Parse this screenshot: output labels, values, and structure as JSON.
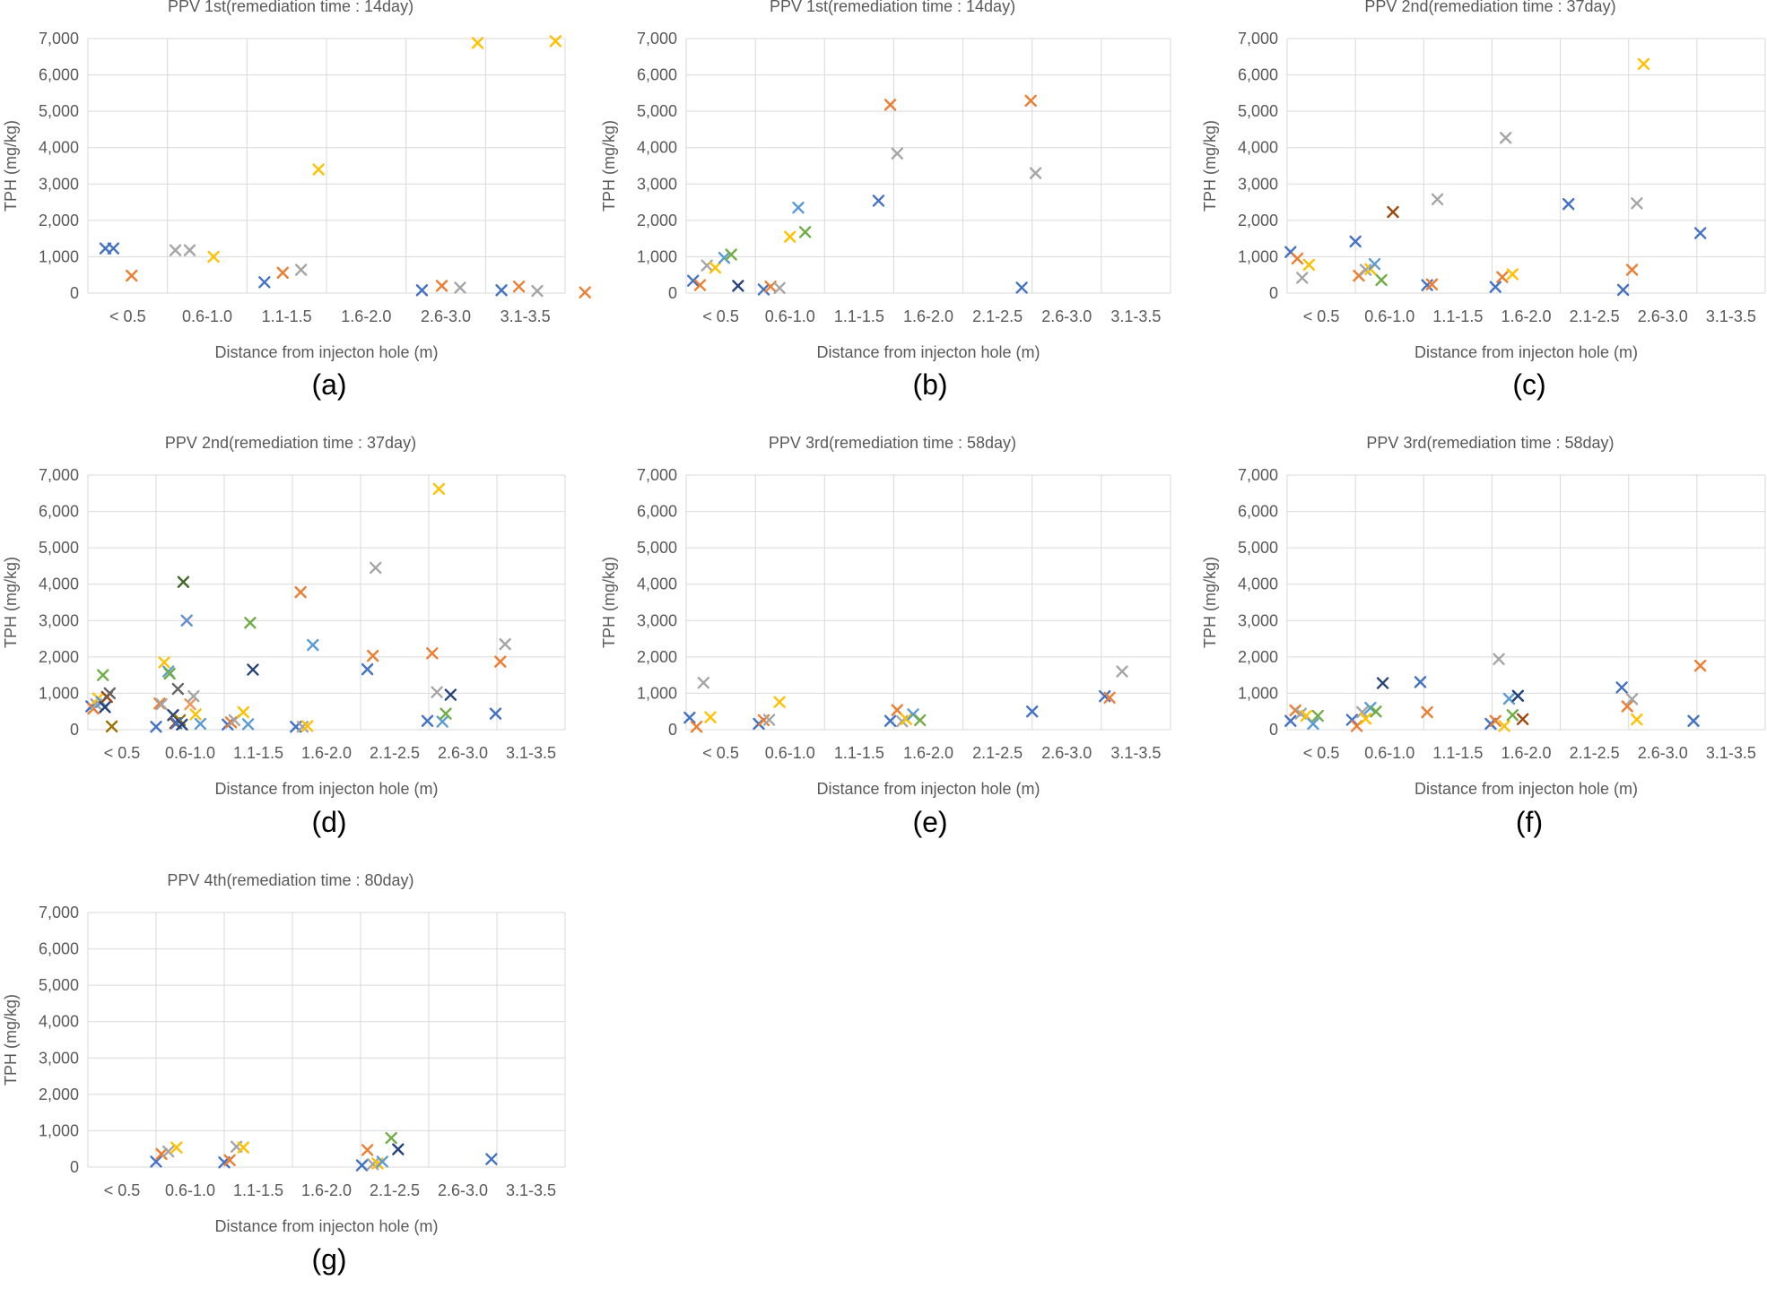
{
  "series_colors": [
    "#4472c4",
    "#ed7d31",
    "#a5a5a5",
    "#ffc000",
    "#5b9bd5",
    "#70ad47",
    "#264478",
    "#9e480e",
    "#636363",
    "#997300",
    "#43682b",
    "#698ed0",
    "#f1975a"
  ],
  "chart_data": [
    {
      "panel_label": "(a)",
      "type": "scatter",
      "title": "PPV 1st(remediation time : 14day)",
      "xlabel": "Distance from injecton hole (m)",
      "ylabel": "TPH (mg/kg)",
      "categories": [
        "< 0.5",
        "0.6-1.0",
        "1.1-1.5",
        "1.6-2.0",
        "2.6-3.0",
        "3.1-3.5"
      ],
      "yticks": [
        "0",
        "1,000",
        "2,000",
        "3,000",
        "4,000",
        "5,000",
        "6,000",
        "7,000"
      ],
      "ylim": [
        0,
        7000
      ],
      "grid": true,
      "points": [
        {
          "x": 0.22,
          "y": 1230,
          "s": 0
        },
        {
          "x": 0.32,
          "y": 1230,
          "s": 0
        },
        {
          "x": 0.55,
          "y": 480,
          "s": 1
        },
        {
          "x": 1.1,
          "y": 1180,
          "s": 2
        },
        {
          "x": 1.28,
          "y": 1180,
          "s": 2
        },
        {
          "x": 1.58,
          "y": 1000,
          "s": 3
        },
        {
          "x": 2.22,
          "y": 300,
          "s": 0
        },
        {
          "x": 2.45,
          "y": 560,
          "s": 1
        },
        {
          "x": 2.68,
          "y": 640,
          "s": 2
        },
        {
          "x": 2.9,
          "y": 3400,
          "s": 3
        },
        {
          "x": 4.2,
          "y": 80,
          "s": 0
        },
        {
          "x": 4.45,
          "y": 200,
          "s": 1
        },
        {
          "x": 4.68,
          "y": 150,
          "s": 2
        },
        {
          "x": 4.9,
          "y": 6880,
          "s": 3
        },
        {
          "x": 5.2,
          "y": 80,
          "s": 0
        },
        {
          "x": 5.42,
          "y": 180,
          "s": 1
        },
        {
          "x": 5.65,
          "y": 60,
          "s": 2
        },
        {
          "x": 5.88,
          "y": 6930,
          "s": 3
        },
        {
          "x": 6.25,
          "y": 20,
          "s": 1
        }
      ]
    },
    {
      "panel_label": "(b)",
      "type": "scatter",
      "title": "PPV 1st(remediation time : 14day)",
      "xlabel": "Distance from injecton hole (m)",
      "ylabel": "TPH (mg/kg)",
      "categories": [
        "< 0.5",
        "0.6-1.0",
        "1.1-1.5",
        "1.6-2.0",
        "2.1-2.5",
        "2.6-3.0",
        "3.1-3.5"
      ],
      "yticks": [
        "0",
        "1,000",
        "2,000",
        "3,000",
        "4,000",
        "5,000",
        "6,000",
        "7,000"
      ],
      "ylim": [
        0,
        7000
      ],
      "grid": true,
      "points": [
        {
          "x": 0.1,
          "y": 340,
          "s": 0
        },
        {
          "x": 0.2,
          "y": 220,
          "s": 1
        },
        {
          "x": 0.3,
          "y": 760,
          "s": 2
        },
        {
          "x": 0.42,
          "y": 700,
          "s": 3
        },
        {
          "x": 0.55,
          "y": 970,
          "s": 4
        },
        {
          "x": 0.65,
          "y": 1060,
          "s": 5
        },
        {
          "x": 0.75,
          "y": 200,
          "s": 6
        },
        {
          "x": 1.12,
          "y": 100,
          "s": 0
        },
        {
          "x": 1.22,
          "y": 180,
          "s": 1
        },
        {
          "x": 1.35,
          "y": 140,
          "s": 2
        },
        {
          "x": 1.5,
          "y": 1550,
          "s": 3
        },
        {
          "x": 1.62,
          "y": 2350,
          "s": 4
        },
        {
          "x": 1.72,
          "y": 1680,
          "s": 5
        },
        {
          "x": 2.78,
          "y": 2540,
          "s": 0
        },
        {
          "x": 2.95,
          "y": 5180,
          "s": 1
        },
        {
          "x": 3.05,
          "y": 3840,
          "s": 2
        },
        {
          "x": 4.85,
          "y": 150,
          "s": 0
        },
        {
          "x": 4.98,
          "y": 5290,
          "s": 1
        },
        {
          "x": 5.05,
          "y": 3300,
          "s": 2
        }
      ]
    },
    {
      "panel_label": "(c)",
      "type": "scatter",
      "title": "PPV 2nd(remediation time : 37day)",
      "xlabel": "Distance from injecton hole (m)",
      "ylabel": "TPH (mg/kg)",
      "categories": [
        "< 0.5",
        "0.6-1.0",
        "1.1-1.5",
        "1.6-2.0",
        "2.1-2.5",
        "2.6-3.0",
        "3.1-3.5"
      ],
      "yticks": [
        "0",
        "1,000",
        "2,000",
        "3,000",
        "4,000",
        "5,000",
        "6,000",
        "7,000"
      ],
      "ylim": [
        0,
        7000
      ],
      "grid": true,
      "points": [
        {
          "x": 0.05,
          "y": 1130,
          "s": 0
        },
        {
          "x": 0.15,
          "y": 950,
          "s": 1
        },
        {
          "x": 0.22,
          "y": 420,
          "s": 2
        },
        {
          "x": 0.32,
          "y": 780,
          "s": 3
        },
        {
          "x": 1.0,
          "y": 1420,
          "s": 0
        },
        {
          "x": 1.05,
          "y": 480,
          "s": 1
        },
        {
          "x": 1.15,
          "y": 640,
          "s": 2
        },
        {
          "x": 1.22,
          "y": 660,
          "s": 3
        },
        {
          "x": 1.28,
          "y": 800,
          "s": 4
        },
        {
          "x": 1.38,
          "y": 360,
          "s": 5
        },
        {
          "x": 1.55,
          "y": 2230,
          "s": 7
        },
        {
          "x": 2.05,
          "y": 220,
          "s": 0
        },
        {
          "x": 2.12,
          "y": 240,
          "s": 1
        },
        {
          "x": 2.2,
          "y": 2580,
          "s": 2
        },
        {
          "x": 3.05,
          "y": 170,
          "s": 0
        },
        {
          "x": 3.15,
          "y": 440,
          "s": 1
        },
        {
          "x": 3.3,
          "y": 520,
          "s": 3
        },
        {
          "x": 3.2,
          "y": 4270,
          "s": 2
        },
        {
          "x": 4.12,
          "y": 2450,
          "s": 0
        },
        {
          "x": 4.92,
          "y": 90,
          "s": 0
        },
        {
          "x": 5.05,
          "y": 640,
          "s": 1
        },
        {
          "x": 5.12,
          "y": 2470,
          "s": 2
        },
        {
          "x": 5.22,
          "y": 6300,
          "s": 3
        },
        {
          "x": 6.05,
          "y": 1650,
          "s": 0
        }
      ]
    },
    {
      "panel_label": "(d)",
      "type": "scatter",
      "title": "PPV 2nd(remediation time : 37day)",
      "xlabel": "Distance from injecton hole (m)",
      "ylabel": "TPH (mg/kg)",
      "categories": [
        "< 0.5",
        "0.6-1.0",
        "1.1-1.5",
        "1.6-2.0",
        "2.1-2.5",
        "2.6-3.0",
        "3.1-3.5"
      ],
      "yticks": [
        "0",
        "1,000",
        "2,000",
        "3,000",
        "4,000",
        "5,000",
        "6,000",
        "7,000"
      ],
      "ylim": [
        0,
        7000
      ],
      "grid": true,
      "points": [
        {
          "x": 0.05,
          "y": 640,
          "s": 0
        },
        {
          "x": 0.08,
          "y": 580,
          "s": 1
        },
        {
          "x": 0.12,
          "y": 700,
          "s": 2
        },
        {
          "x": 0.15,
          "y": 860,
          "s": 3
        },
        {
          "x": 0.2,
          "y": 760,
          "s": 4
        },
        {
          "x": 0.22,
          "y": 1500,
          "s": 5
        },
        {
          "x": 0.25,
          "y": 620,
          "s": 6
        },
        {
          "x": 0.28,
          "y": 900,
          "s": 7
        },
        {
          "x": 0.32,
          "y": 1000,
          "s": 8
        },
        {
          "x": 0.35,
          "y": 90,
          "s": 9
        },
        {
          "x": 1.0,
          "y": 80,
          "s": 0
        },
        {
          "x": 1.05,
          "y": 720,
          "s": 1
        },
        {
          "x": 1.08,
          "y": 700,
          "s": 2
        },
        {
          "x": 1.12,
          "y": 1850,
          "s": 3
        },
        {
          "x": 1.18,
          "y": 1600,
          "s": 4
        },
        {
          "x": 1.2,
          "y": 1540,
          "s": 5
        },
        {
          "x": 1.25,
          "y": 400,
          "s": 6
        },
        {
          "x": 1.28,
          "y": 180,
          "s": 7
        },
        {
          "x": 1.32,
          "y": 1120,
          "s": 8
        },
        {
          "x": 1.35,
          "y": 260,
          "s": 9
        },
        {
          "x": 1.4,
          "y": 4060,
          "s": 10
        },
        {
          "x": 1.45,
          "y": 3000,
          "s": 11
        },
        {
          "x": 1.5,
          "y": 700,
          "s": 12
        },
        {
          "x": 1.3,
          "y": 180,
          "s": 0
        },
        {
          "x": 1.38,
          "y": 140,
          "s": 6
        },
        {
          "x": 1.55,
          "y": 920,
          "s": 2
        },
        {
          "x": 1.58,
          "y": 420,
          "s": 3
        },
        {
          "x": 1.65,
          "y": 160,
          "s": 4
        },
        {
          "x": 2.05,
          "y": 140,
          "s": 0
        },
        {
          "x": 2.1,
          "y": 200,
          "s": 1
        },
        {
          "x": 2.15,
          "y": 260,
          "s": 2
        },
        {
          "x": 2.28,
          "y": 480,
          "s": 3
        },
        {
          "x": 2.35,
          "y": 150,
          "s": 4
        },
        {
          "x": 2.38,
          "y": 2940,
          "s": 5
        },
        {
          "x": 2.42,
          "y": 1650,
          "s": 6
        },
        {
          "x": 3.05,
          "y": 80,
          "s": 0
        },
        {
          "x": 3.12,
          "y": 3780,
          "s": 1
        },
        {
          "x": 3.15,
          "y": 80,
          "s": 2
        },
        {
          "x": 3.22,
          "y": 100,
          "s": 3
        },
        {
          "x": 3.3,
          "y": 2330,
          "s": 4
        },
        {
          "x": 4.1,
          "y": 1660,
          "s": 0
        },
        {
          "x": 4.18,
          "y": 2030,
          "s": 1
        },
        {
          "x": 4.22,
          "y": 4450,
          "s": 2
        },
        {
          "x": 4.98,
          "y": 240,
          "s": 0
        },
        {
          "x": 5.05,
          "y": 2100,
          "s": 1
        },
        {
          "x": 5.12,
          "y": 1030,
          "s": 2
        },
        {
          "x": 5.15,
          "y": 6620,
          "s": 3
        },
        {
          "x": 5.2,
          "y": 220,
          "s": 4
        },
        {
          "x": 5.25,
          "y": 440,
          "s": 5
        },
        {
          "x": 5.32,
          "y": 960,
          "s": 6
        },
        {
          "x": 5.98,
          "y": 440,
          "s": 0
        },
        {
          "x": 6.05,
          "y": 1870,
          "s": 1
        },
        {
          "x": 6.12,
          "y": 2350,
          "s": 2
        }
      ]
    },
    {
      "panel_label": "(e)",
      "type": "scatter",
      "title": "PPV 3rd(remediation time : 58day)",
      "xlabel": "Distance from injecton hole (m)",
      "ylabel": "TPH (mg/kg)",
      "categories": [
        "< 0.5",
        "0.6-1.0",
        "1.1-1.5",
        "1.6-2.0",
        "2.1-2.5",
        "2.6-3.0",
        "3.1-3.5"
      ],
      "yticks": [
        "0",
        "1,000",
        "2,000",
        "3,000",
        "4,000",
        "5,000",
        "6,000",
        "7,000"
      ],
      "ylim": [
        0,
        7000
      ],
      "grid": true,
      "points": [
        {
          "x": 0.05,
          "y": 330,
          "s": 0
        },
        {
          "x": 0.15,
          "y": 80,
          "s": 1
        },
        {
          "x": 0.25,
          "y": 1290,
          "s": 2
        },
        {
          "x": 0.35,
          "y": 340,
          "s": 3
        },
        {
          "x": 1.05,
          "y": 160,
          "s": 0
        },
        {
          "x": 1.12,
          "y": 260,
          "s": 1
        },
        {
          "x": 1.2,
          "y": 270,
          "s": 2
        },
        {
          "x": 1.35,
          "y": 760,
          "s": 3
        },
        {
          "x": 2.95,
          "y": 240,
          "s": 0
        },
        {
          "x": 3.05,
          "y": 540,
          "s": 1
        },
        {
          "x": 3.12,
          "y": 230,
          "s": 2
        },
        {
          "x": 3.18,
          "y": 290,
          "s": 3
        },
        {
          "x": 3.28,
          "y": 420,
          "s": 4
        },
        {
          "x": 3.38,
          "y": 260,
          "s": 5
        },
        {
          "x": 5.0,
          "y": 500,
          "s": 0
        },
        {
          "x": 6.05,
          "y": 920,
          "s": 0
        },
        {
          "x": 6.12,
          "y": 880,
          "s": 1
        },
        {
          "x": 6.3,
          "y": 1600,
          "s": 2
        }
      ]
    },
    {
      "panel_label": "(f)",
      "type": "scatter",
      "title": "PPV 3rd(remediation time : 58day)",
      "xlabel": "Distance from injecton hole (m)",
      "ylabel": "TPH (mg/kg)",
      "categories": [
        "< 0.5",
        "0.6-1.0",
        "1.1-1.5",
        "1.6-2.0",
        "2.1-2.5",
        "2.6-3.0",
        "3.1-3.5"
      ],
      "yticks": [
        "0",
        "1,000",
        "2,000",
        "3,000",
        "4,000",
        "5,000",
        "6,000",
        "7,000"
      ],
      "ylim": [
        0,
        7000
      ],
      "grid": true,
      "points": [
        {
          "x": 0.05,
          "y": 240,
          "s": 0
        },
        {
          "x": 0.12,
          "y": 530,
          "s": 1
        },
        {
          "x": 0.2,
          "y": 440,
          "s": 2
        },
        {
          "x": 0.28,
          "y": 380,
          "s": 3
        },
        {
          "x": 0.38,
          "y": 160,
          "s": 4
        },
        {
          "x": 0.45,
          "y": 380,
          "s": 5
        },
        {
          "x": 0.95,
          "y": 270,
          "s": 0
        },
        {
          "x": 1.02,
          "y": 100,
          "s": 1
        },
        {
          "x": 1.1,
          "y": 480,
          "s": 2
        },
        {
          "x": 1.15,
          "y": 300,
          "s": 3
        },
        {
          "x": 1.22,
          "y": 600,
          "s": 4
        },
        {
          "x": 1.3,
          "y": 500,
          "s": 5
        },
        {
          "x": 1.4,
          "y": 1280,
          "s": 6
        },
        {
          "x": 1.95,
          "y": 1310,
          "s": 0
        },
        {
          "x": 2.05,
          "y": 480,
          "s": 1
        },
        {
          "x": 2.98,
          "y": 160,
          "s": 0
        },
        {
          "x": 3.05,
          "y": 240,
          "s": 1
        },
        {
          "x": 3.1,
          "y": 1940,
          "s": 2
        },
        {
          "x": 3.18,
          "y": 100,
          "s": 3
        },
        {
          "x": 3.25,
          "y": 850,
          "s": 4
        },
        {
          "x": 3.3,
          "y": 400,
          "s": 5
        },
        {
          "x": 3.38,
          "y": 930,
          "s": 6
        },
        {
          "x": 3.45,
          "y": 290,
          "s": 7
        },
        {
          "x": 4.9,
          "y": 1160,
          "s": 0
        },
        {
          "x": 4.98,
          "y": 640,
          "s": 1
        },
        {
          "x": 5.05,
          "y": 840,
          "s": 2
        },
        {
          "x": 5.12,
          "y": 280,
          "s": 3
        },
        {
          "x": 5.95,
          "y": 240,
          "s": 0
        },
        {
          "x": 6.05,
          "y": 1760,
          "s": 1
        }
      ]
    },
    {
      "panel_label": "(g)",
      "type": "scatter",
      "title": "PPV 4th(remediation time : 80day)",
      "xlabel": "Distance from injecton hole (m)",
      "ylabel": "TPH (mg/kg)",
      "categories": [
        "< 0.5",
        "0.6-1.0",
        "1.1-1.5",
        "1.6-2.0",
        "2.1-2.5",
        "2.6-3.0",
        "3.1-3.5"
      ],
      "yticks": [
        "0",
        "1,000",
        "2,000",
        "3,000",
        "4,000",
        "5,000",
        "6,000",
        "7,000"
      ],
      "ylim": [
        0,
        7000
      ],
      "grid": true,
      "points": [
        {
          "x": 1.0,
          "y": 150,
          "s": 0
        },
        {
          "x": 1.08,
          "y": 360,
          "s": 1
        },
        {
          "x": 1.18,
          "y": 430,
          "s": 2
        },
        {
          "x": 1.3,
          "y": 540,
          "s": 3
        },
        {
          "x": 2.0,
          "y": 130,
          "s": 0
        },
        {
          "x": 2.08,
          "y": 190,
          "s": 1
        },
        {
          "x": 2.18,
          "y": 560,
          "s": 2
        },
        {
          "x": 2.28,
          "y": 540,
          "s": 3
        },
        {
          "x": 4.02,
          "y": 50,
          "s": 0
        },
        {
          "x": 4.1,
          "y": 470,
          "s": 1
        },
        {
          "x": 4.18,
          "y": 80,
          "s": 2
        },
        {
          "x": 4.25,
          "y": 100,
          "s": 3
        },
        {
          "x": 4.32,
          "y": 150,
          "s": 4
        },
        {
          "x": 4.45,
          "y": 800,
          "s": 5
        },
        {
          "x": 4.55,
          "y": 490,
          "s": 6
        },
        {
          "x": 5.92,
          "y": 220,
          "s": 0
        }
      ]
    }
  ]
}
